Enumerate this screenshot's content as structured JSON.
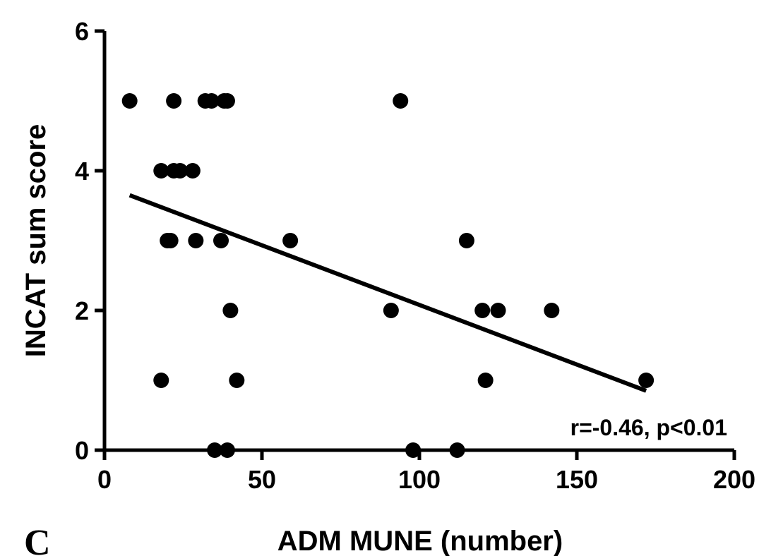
{
  "chart_data": {
    "type": "scatter",
    "xlabel": "ADM MUNE (number)",
    "ylabel": "INCAT sum score",
    "xlim": [
      0,
      200
    ],
    "ylim": [
      0,
      6
    ],
    "x_ticks": [
      0,
      50,
      100,
      150,
      200
    ],
    "y_ticks": [
      0,
      2,
      4,
      6
    ],
    "grid": false,
    "annotation": "r=-0.46, p<0.01",
    "panel_label": "C",
    "points": [
      {
        "x": 8,
        "y": 5
      },
      {
        "x": 22,
        "y": 5
      },
      {
        "x": 32,
        "y": 5
      },
      {
        "x": 34,
        "y": 5
      },
      {
        "x": 38,
        "y": 5
      },
      {
        "x": 39,
        "y": 5
      },
      {
        "x": 94,
        "y": 5
      },
      {
        "x": 18,
        "y": 4
      },
      {
        "x": 22,
        "y": 4
      },
      {
        "x": 24,
        "y": 4
      },
      {
        "x": 28,
        "y": 4
      },
      {
        "x": 20,
        "y": 3
      },
      {
        "x": 21,
        "y": 3
      },
      {
        "x": 29,
        "y": 3
      },
      {
        "x": 37,
        "y": 3
      },
      {
        "x": 59,
        "y": 3
      },
      {
        "x": 115,
        "y": 3
      },
      {
        "x": 40,
        "y": 2
      },
      {
        "x": 91,
        "y": 2
      },
      {
        "x": 120,
        "y": 2
      },
      {
        "x": 125,
        "y": 2
      },
      {
        "x": 142,
        "y": 2
      },
      {
        "x": 18,
        "y": 1
      },
      {
        "x": 42,
        "y": 1
      },
      {
        "x": 121,
        "y": 1
      },
      {
        "x": 172,
        "y": 1
      },
      {
        "x": 35,
        "y": 0
      },
      {
        "x": 39,
        "y": 0
      },
      {
        "x": 98,
        "y": 0
      },
      {
        "x": 112,
        "y": 0
      }
    ],
    "regression_line": {
      "x": [
        8,
        172
      ],
      "y": [
        3.65,
        0.85
      ]
    }
  }
}
